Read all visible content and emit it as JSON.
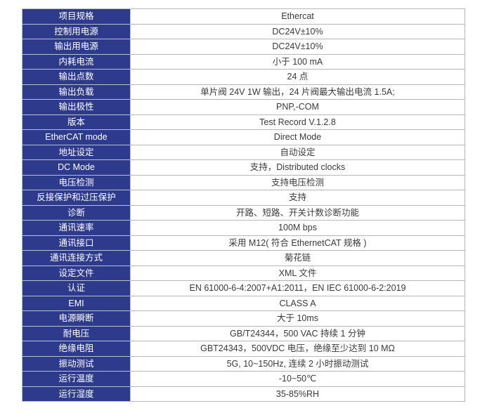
{
  "table": {
    "colors": {
      "label_bg": "#2e3a8c",
      "label_text": "#ffffff",
      "value_text": "#3a3a3a",
      "border": "#b6b6ba"
    },
    "rows": [
      {
        "label": "项目规格",
        "value": "Ethercat"
      },
      {
        "label": "控制用电源",
        "value": "DC24V±10%"
      },
      {
        "label": "输出用电源",
        "value": "DC24V±10%"
      },
      {
        "label": "内耗电流",
        "value": "小于 100 mA"
      },
      {
        "label": "输出点数",
        "value": "24 点"
      },
      {
        "label": "输出负载",
        "value": "单片阀 24V 1W 输出，24 片阀最大输出电流 1.5A;"
      },
      {
        "label": "输出极性",
        "value": "PNP,-COM"
      },
      {
        "label": "版本",
        "value": "Test Record V.1.2.8"
      },
      {
        "label": "EtherCAT mode",
        "value": "Direct Mode"
      },
      {
        "label": "地址设定",
        "value": "自动设定"
      },
      {
        "label": "DC Mode",
        "value": "支持，Distributed clocks"
      },
      {
        "label": "电压检测",
        "value": "支持电压检测"
      },
      {
        "label": "反接保护和过压保护",
        "value": "支持"
      },
      {
        "label": "诊断",
        "value": "开路、短路、开关计数诊断功能"
      },
      {
        "label": "通讯速率",
        "value": "100M bps"
      },
      {
        "label": "通讯接口",
        "value": "采用 M12( 符合 EthernetCAT 规格 )"
      },
      {
        "label": "通讯连接方式",
        "value": "菊花链"
      },
      {
        "label": "设定文件",
        "value": "XML 文件"
      },
      {
        "label": "认证",
        "value": "EN 61000-6-4:2007+A1:2011，EN IEC 61000-6-2:2019"
      },
      {
        "label": "EMI",
        "value": "CLASS A"
      },
      {
        "label": "电源瞬断",
        "value": "大于 10ms"
      },
      {
        "label": "耐电压",
        "value": "GB/T24344，500 VAC 持续 1 分钟"
      },
      {
        "label": "绝缘电阻",
        "value": "GBT24343，500VDC 电压，绝缘至少达到 10 MΩ"
      },
      {
        "label": "振动测试",
        "value": "5G, 10~150Hz, 连续 2 小时振动测试"
      },
      {
        "label": "运行温度",
        "value": "-10~50℃"
      },
      {
        "label": "运行湿度",
        "value": "35-85%RH"
      }
    ]
  }
}
